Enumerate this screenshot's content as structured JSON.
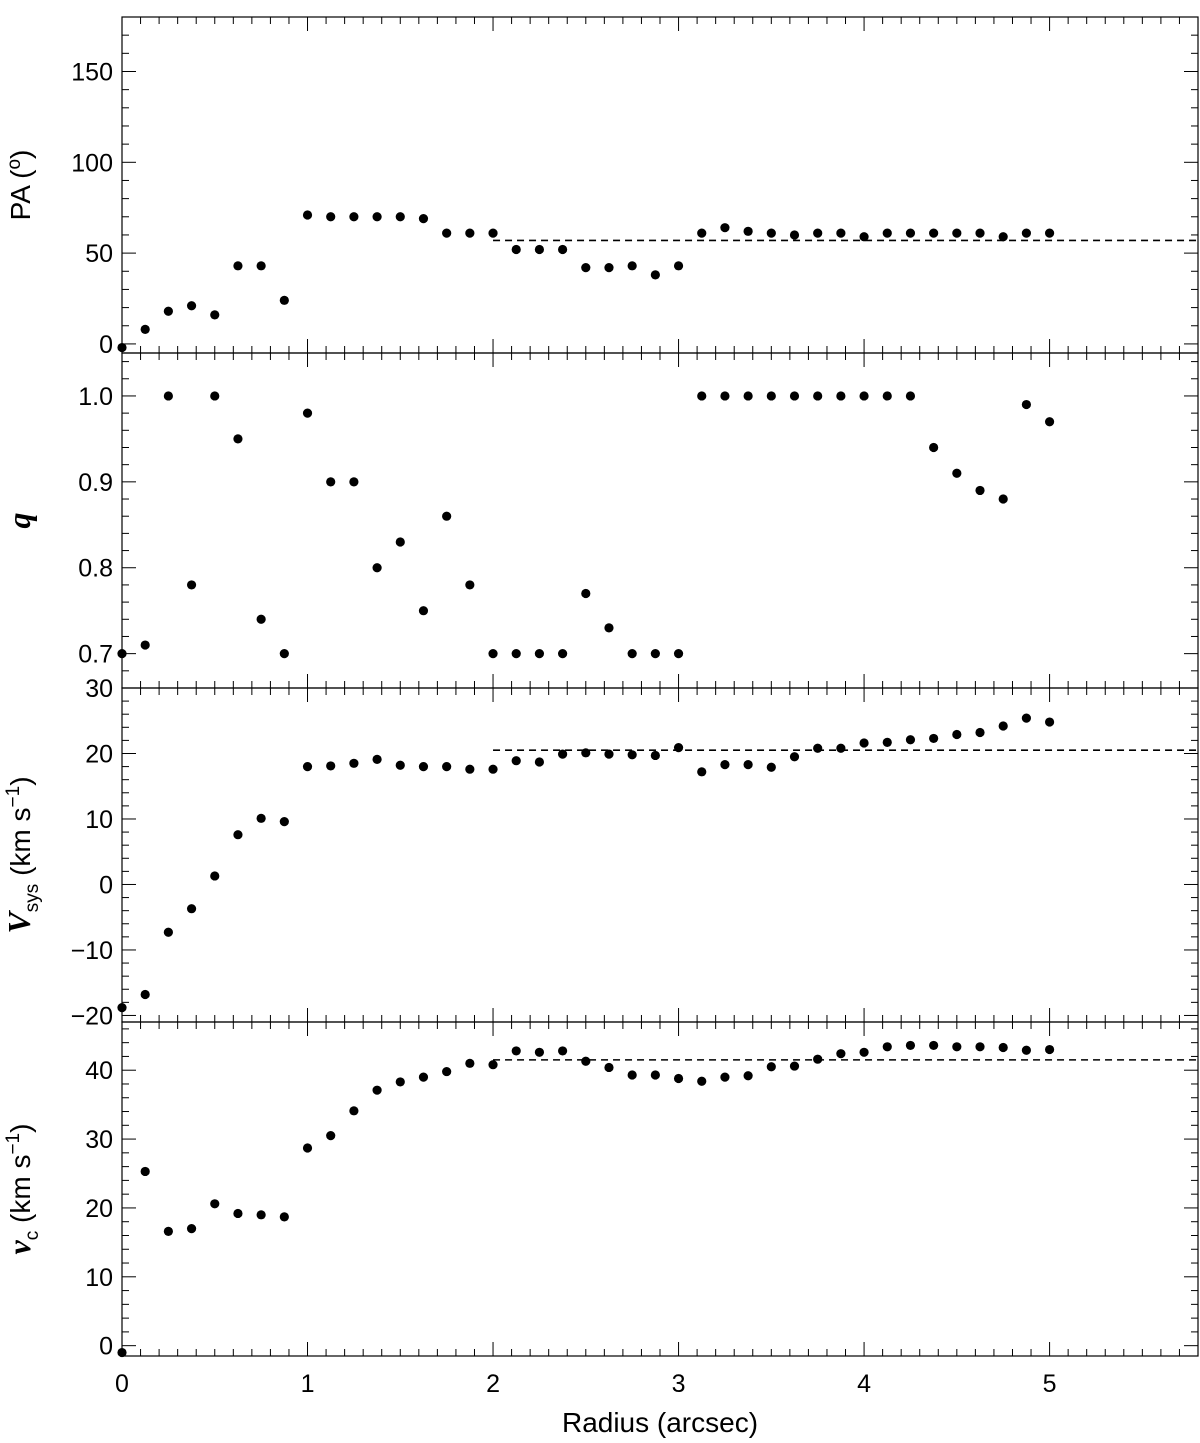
{
  "chart_data": {
    "type": "scatter",
    "x_axis": {
      "label": "Radius (arcsec)",
      "range": [
        0,
        5.8
      ],
      "ticks": [
        0,
        1,
        2,
        3,
        4,
        5
      ],
      "tick_labels": [
        "0",
        "1",
        "2",
        "3",
        "4",
        "5"
      ]
    },
    "panels": [
      {
        "id": "pa",
        "ylabel": "PA (°)",
        "ylabel_parts": {
          "main": "PA (",
          "sup": "o",
          "end": ")"
        },
        "ylim": [
          -5,
          180
        ],
        "yticks": [
          0,
          50,
          100,
          150
        ],
        "ytick_labels": [
          "0",
          "50",
          "100",
          "150"
        ],
        "x": [
          0.0,
          0.125,
          0.25,
          0.375,
          0.5,
          0.625,
          0.75,
          0.875,
          1.0,
          1.125,
          1.25,
          1.375,
          1.5,
          1.625,
          1.75,
          1.875,
          2.0,
          2.125,
          2.25,
          2.375,
          2.5,
          2.625,
          2.75,
          2.875,
          3.0,
          3.125,
          3.25,
          3.375,
          3.5,
          3.625,
          3.75,
          3.875,
          4.0,
          4.125,
          4.25,
          4.375,
          4.5,
          4.625,
          4.75,
          4.875,
          5.0
        ],
        "y": [
          -2,
          8,
          18,
          21,
          16,
          43,
          43,
          24,
          71,
          70,
          70,
          70,
          70,
          69,
          61,
          61,
          61,
          52,
          52,
          52,
          42,
          42,
          43,
          38,
          43,
          61,
          64,
          62,
          61,
          60,
          61,
          61,
          59,
          61,
          61,
          61,
          61,
          61,
          59,
          61,
          61
        ],
        "reference": {
          "y": 57,
          "x_start": 2.0,
          "x_end": 5.8
        }
      },
      {
        "id": "q",
        "ylabel": "q",
        "ylim": [
          0.66,
          1.05
        ],
        "yticks": [
          0.7,
          0.8,
          0.9,
          1.0
        ],
        "ytick_labels": [
          "0.7",
          "0.8",
          "0.9",
          "1.0"
        ],
        "x": [
          0.0,
          0.125,
          0.25,
          0.375,
          0.5,
          0.625,
          0.75,
          0.875,
          1.0,
          1.125,
          1.25,
          1.375,
          1.5,
          1.625,
          1.75,
          1.875,
          2.0,
          2.125,
          2.25,
          2.375,
          2.5,
          2.625,
          2.75,
          2.875,
          3.0,
          3.125,
          3.25,
          3.375,
          3.5,
          3.625,
          3.75,
          3.875,
          4.0,
          4.125,
          4.25,
          4.375,
          4.5,
          4.625,
          4.75,
          4.875,
          5.0
        ],
        "y": [
          0.7,
          0.71,
          1.0,
          0.78,
          1.0,
          0.95,
          0.74,
          0.7,
          0.98,
          0.9,
          0.9,
          0.8,
          0.83,
          0.75,
          0.86,
          0.78,
          0.7,
          0.7,
          0.7,
          0.7,
          0.77,
          0.73,
          0.7,
          0.7,
          0.7,
          1.0,
          1.0,
          1.0,
          1.0,
          1.0,
          1.0,
          1.0,
          1.0,
          1.0,
          1.0,
          0.94,
          0.91,
          0.89,
          0.88,
          0.99,
          0.97
        ]
      },
      {
        "id": "vsys",
        "ylabel_parts": {
          "main": "V",
          "sub": "sys",
          "unit": " (km s",
          "sup": "−1",
          "end": ")"
        },
        "ylim": [
          -21,
          30
        ],
        "yticks": [
          -20,
          -10,
          0,
          10,
          20,
          30
        ],
        "ytick_labels": [
          "−20",
          "−10",
          "0",
          "10",
          "20",
          "30"
        ],
        "x": [
          0.0,
          0.125,
          0.25,
          0.375,
          0.5,
          0.625,
          0.75,
          0.875,
          1.0,
          1.125,
          1.25,
          1.375,
          1.5,
          1.625,
          1.75,
          1.875,
          2.0,
          2.125,
          2.25,
          2.375,
          2.5,
          2.625,
          2.75,
          2.875,
          3.0,
          3.125,
          3.25,
          3.375,
          3.5,
          3.625,
          3.75,
          3.875,
          4.0,
          4.125,
          4.25,
          4.375,
          4.5,
          4.625,
          4.75,
          4.875,
          5.0
        ],
        "y": [
          -18.8,
          -16.8,
          -7.3,
          -3.7,
          1.3,
          7.6,
          10.1,
          9.6,
          18.0,
          18.1,
          18.5,
          19.1,
          18.2,
          18.0,
          18.0,
          17.6,
          17.6,
          18.9,
          18.7,
          19.9,
          20.1,
          19.9,
          19.8,
          19.7,
          20.9,
          17.2,
          18.3,
          18.3,
          17.9,
          19.5,
          20.8,
          20.8,
          21.6,
          21.7,
          22.1,
          22.3,
          22.9,
          23.2,
          24.2,
          25.4,
          24.8
        ],
        "reference": {
          "y": 20.5,
          "x_start": 2.0,
          "x_end": 5.8
        }
      },
      {
        "id": "vc",
        "ylabel_parts": {
          "main": "v",
          "sub": "c",
          "unit": " (km s",
          "sup": "−1",
          "end": ")"
        },
        "ylim": [
          -1.5,
          47
        ],
        "yticks": [
          0,
          10,
          20,
          30,
          40
        ],
        "ytick_labels": [
          "0",
          "10",
          "20",
          "30",
          "40"
        ],
        "x": [
          0.0,
          0.125,
          0.25,
          0.375,
          0.5,
          0.625,
          0.75,
          0.875,
          1.0,
          1.125,
          1.25,
          1.375,
          1.5,
          1.625,
          1.75,
          1.875,
          2.0,
          2.125,
          2.25,
          2.375,
          2.5,
          2.625,
          2.75,
          2.875,
          3.0,
          3.125,
          3.25,
          3.375,
          3.5,
          3.625,
          3.75,
          3.875,
          4.0,
          4.125,
          4.25,
          4.375,
          4.5,
          4.625,
          4.75,
          4.875,
          5.0
        ],
        "y": [
          -1.0,
          25.3,
          16.6,
          17.0,
          20.6,
          19.2,
          19.0,
          18.7,
          28.7,
          30.5,
          34.1,
          37.1,
          38.3,
          39.0,
          39.8,
          41.0,
          40.8,
          42.8,
          42.6,
          42.8,
          41.3,
          40.4,
          39.3,
          39.3,
          38.8,
          38.4,
          39.0,
          39.2,
          40.5,
          40.6,
          41.6,
          42.4,
          42.6,
          43.4,
          43.6,
          43.6,
          43.4,
          43.4,
          43.3,
          42.9,
          43.0
        ],
        "reference": {
          "y": 41.5,
          "x_start": 2.0,
          "x_end": 5.8
        }
      }
    ]
  }
}
